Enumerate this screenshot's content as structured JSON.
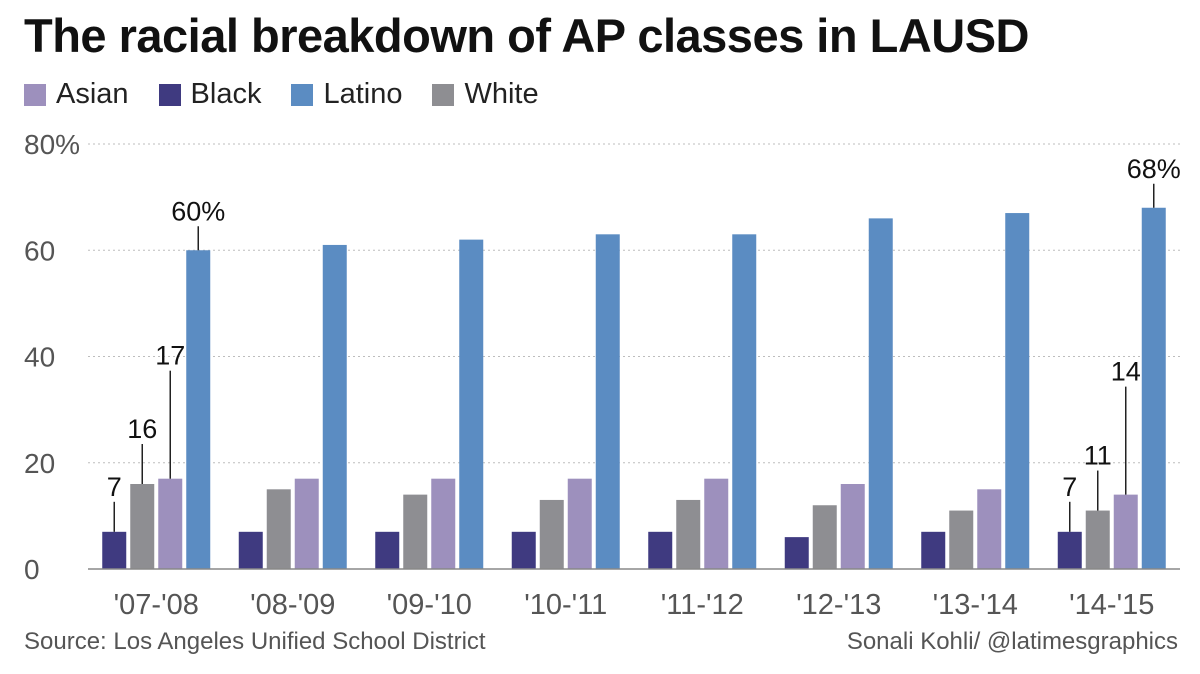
{
  "title": "The racial breakdown of AP classes in LAUSD",
  "source": "Source: Los Angeles Unified School District",
  "credit": "Sonali Kohli/ @latimesgraphics",
  "colors": {
    "Asian": "#9d90bd",
    "Black": "#3f3a80",
    "Latino": "#5b8cc2",
    "White": "#8e8e92"
  },
  "chart_data": {
    "type": "bar",
    "categories": [
      "'07-'08",
      "'08-'09",
      "'09-'10",
      "'10-'11",
      "'11-'12",
      "'12-'13",
      "'13-'14",
      "'14-'15"
    ],
    "legend_order": [
      "Asian",
      "Black",
      "Latino",
      "White"
    ],
    "bar_order": [
      "Black",
      "White",
      "Asian",
      "Latino"
    ],
    "series": [
      {
        "name": "Asian",
        "values": [
          17,
          17,
          17,
          17,
          17,
          16,
          15,
          14
        ]
      },
      {
        "name": "Black",
        "values": [
          7,
          7,
          7,
          7,
          7,
          6,
          7,
          7
        ]
      },
      {
        "name": "Latino",
        "values": [
          60,
          61,
          62,
          63,
          63,
          66,
          67,
          68
        ]
      },
      {
        "name": "White",
        "values": [
          16,
          15,
          14,
          13,
          13,
          12,
          11,
          11
        ]
      }
    ],
    "ylim": [
      0,
      80
    ],
    "yticks": [
      0,
      20,
      40,
      60,
      80
    ],
    "ytick_labels": [
      "0",
      "20",
      "40",
      "60",
      "80%"
    ],
    "grid": true,
    "legend_position": "top-left",
    "annotations": [
      {
        "category": "'07-'08",
        "series": "Black",
        "label": "7"
      },
      {
        "category": "'07-'08",
        "series": "White",
        "label": "16"
      },
      {
        "category": "'07-'08",
        "series": "Asian",
        "label": "17"
      },
      {
        "category": "'07-'08",
        "series": "Latino",
        "label": "60%"
      },
      {
        "category": "'14-'15",
        "series": "Black",
        "label": "7"
      },
      {
        "category": "'14-'15",
        "series": "White",
        "label": "11"
      },
      {
        "category": "'14-'15",
        "series": "Asian",
        "label": "14"
      },
      {
        "category": "'14-'15",
        "series": "Latino",
        "label": "68%"
      }
    ]
  }
}
